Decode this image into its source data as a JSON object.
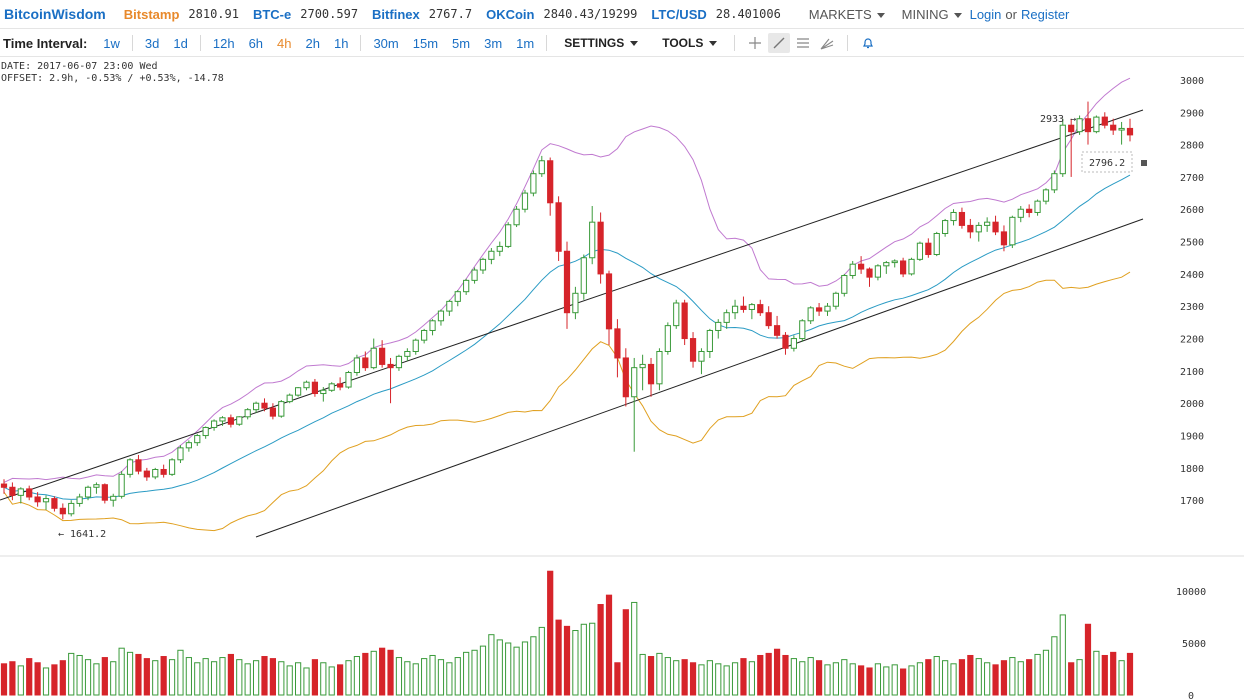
{
  "header": {
    "brand": "BitcoinWisdom",
    "exchanges": [
      {
        "name": "Bitstamp",
        "price": "2810.91",
        "color": "#e8892b"
      },
      {
        "name": "BTC-e",
        "price": "2700.597",
        "color": "#1a6fc4"
      },
      {
        "name": "Bitfinex",
        "price": "2767.7",
        "color": "#1a6fc4"
      },
      {
        "name": "OKCoin",
        "price": "2840.43/19299",
        "color": "#1a6fc4"
      },
      {
        "name": "LTC/USD",
        "price": "28.401006",
        "color": "#1a6fc4"
      }
    ],
    "markets_label": "MARKETS",
    "mining_label": "MINING",
    "login_label": "Login",
    "or_label": "or",
    "register_label": "Register"
  },
  "toolbar": {
    "time_interval_label": "Time Interval:",
    "intervals": [
      "1w",
      "3d",
      "1d",
      "12h",
      "6h",
      "4h",
      "2h",
      "1h",
      "30m",
      "15m",
      "5m",
      "3m",
      "1m"
    ],
    "active_interval": "4h",
    "settings_label": "SETTINGS",
    "tools_label": "TOOLS",
    "tool_icons": [
      "crosshair-icon",
      "trendline-icon",
      "fibonacci-icon",
      "fan-icon",
      "bell-icon"
    ]
  },
  "info": {
    "date_line": "DATE: 2017-06-07 23:00 Wed",
    "offset_line": "OFFSET: 2.9h, -0.53% / +0.53%, -14.78"
  },
  "annotations": {
    "high_label": "2933 →",
    "low_label": "← 1641.2",
    "current_price": "2796.2"
  },
  "colors": {
    "up": "#3a9a3a",
    "down": "#d6242a",
    "ma_fast": "#2a9bc4",
    "band_upper": "#c07ad0",
    "band_lower": "#e0a020",
    "channel": "#222222"
  },
  "chart_data": {
    "type": "candlestick",
    "price_axis_ticks": [
      1700,
      1800,
      1900,
      2000,
      2100,
      2200,
      2300,
      2400,
      2500,
      2600,
      2700,
      2800,
      2900,
      3000
    ],
    "volume_axis_ticks": [
      0,
      5000,
      10000
    ],
    "price_range": [
      1580,
      3040
    ],
    "volume_range": [
      0,
      12500
    ],
    "candles": [
      [
        1750,
        1765,
        1720,
        1740,
        3000
      ],
      [
        1740,
        1755,
        1700,
        1715,
        3200
      ],
      [
        1715,
        1740,
        1690,
        1735,
        2800
      ],
      [
        1735,
        1745,
        1700,
        1710,
        3500
      ],
      [
        1710,
        1725,
        1680,
        1695,
        3100
      ],
      [
        1695,
        1715,
        1670,
        1705,
        2600
      ],
      [
        1705,
        1712,
        1665,
        1675,
        2900
      ],
      [
        1675,
        1690,
        1641,
        1658,
        3300
      ],
      [
        1658,
        1700,
        1650,
        1690,
        4000
      ],
      [
        1690,
        1720,
        1680,
        1710,
        3800
      ],
      [
        1710,
        1745,
        1700,
        1740,
        3400
      ],
      [
        1740,
        1755,
        1720,
        1748,
        3000
      ],
      [
        1748,
        1752,
        1690,
        1700,
        3600
      ],
      [
        1700,
        1720,
        1680,
        1712,
        3200
      ],
      [
        1712,
        1790,
        1705,
        1780,
        4500
      ],
      [
        1780,
        1830,
        1770,
        1825,
        4100
      ],
      [
        1825,
        1840,
        1780,
        1790,
        3900
      ],
      [
        1790,
        1800,
        1760,
        1772,
        3500
      ],
      [
        1772,
        1800,
        1765,
        1795,
        3300
      ],
      [
        1795,
        1810,
        1770,
        1780,
        3700
      ],
      [
        1780,
        1830,
        1775,
        1825,
        3400
      ],
      [
        1825,
        1870,
        1815,
        1862,
        4300
      ],
      [
        1862,
        1885,
        1850,
        1878,
        3600
      ],
      [
        1878,
        1905,
        1868,
        1900,
        3100
      ],
      [
        1900,
        1928,
        1890,
        1925,
        3500
      ],
      [
        1925,
        1950,
        1915,
        1945,
        3200
      ],
      [
        1945,
        1960,
        1930,
        1955,
        3600
      ],
      [
        1955,
        1965,
        1925,
        1935,
        3900
      ],
      [
        1935,
        1960,
        1930,
        1958,
        3400
      ],
      [
        1958,
        1985,
        1950,
        1980,
        3000
      ],
      [
        1980,
        2005,
        1970,
        2000,
        3300
      ],
      [
        2000,
        2015,
        1975,
        1985,
        3700
      ],
      [
        1985,
        2000,
        1950,
        1960,
        3500
      ],
      [
        1960,
        2010,
        1955,
        2005,
        3200
      ],
      [
        2005,
        2030,
        2000,
        2025,
        2800
      ],
      [
        2025,
        2050,
        2020,
        2048,
        3100
      ],
      [
        2048,
        2070,
        2040,
        2065,
        2600
      ],
      [
        2065,
        2075,
        2020,
        2030,
        3400
      ],
      [
        2030,
        2050,
        2005,
        2040,
        3100
      ],
      [
        2040,
        2065,
        2035,
        2060,
        2700
      ],
      [
        2060,
        2080,
        2040,
        2050,
        2900
      ],
      [
        2050,
        2100,
        2045,
        2095,
        3300
      ],
      [
        2095,
        2150,
        2085,
        2140,
        3700
      ],
      [
        2140,
        2160,
        2100,
        2110,
        4000
      ],
      [
        2110,
        2200,
        2105,
        2170,
        4200
      ],
      [
        2170,
        2195,
        2110,
        2120,
        4500
      ],
      [
        2120,
        2140,
        2000,
        2110,
        4300
      ],
      [
        2110,
        2150,
        2100,
        2145,
        3600
      ],
      [
        2145,
        2170,
        2130,
        2160,
        3200
      ],
      [
        2160,
        2200,
        2150,
        2195,
        3000
      ],
      [
        2195,
        2230,
        2185,
        2225,
        3500
      ],
      [
        2225,
        2260,
        2210,
        2255,
        3800
      ],
      [
        2255,
        2290,
        2240,
        2285,
        3400
      ],
      [
        2285,
        2320,
        2270,
        2315,
        3100
      ],
      [
        2315,
        2350,
        2300,
        2345,
        3600
      ],
      [
        2345,
        2385,
        2335,
        2380,
        4100
      ],
      [
        2380,
        2420,
        2370,
        2412,
        4300
      ],
      [
        2412,
        2450,
        2400,
        2445,
        4700
      ],
      [
        2445,
        2480,
        2430,
        2470,
        5800
      ],
      [
        2470,
        2500,
        2455,
        2485,
        5300
      ],
      [
        2485,
        2560,
        2480,
        2552,
        5000
      ],
      [
        2552,
        2610,
        2545,
        2600,
        4600
      ],
      [
        2600,
        2660,
        2590,
        2650,
        5100
      ],
      [
        2650,
        2720,
        2640,
        2710,
        5600
      ],
      [
        2710,
        2765,
        2700,
        2750,
        6500
      ],
      [
        2750,
        2760,
        2580,
        2620,
        11900
      ],
      [
        2620,
        2640,
        2440,
        2470,
        7200
      ],
      [
        2470,
        2500,
        2230,
        2280,
        6600
      ],
      [
        2280,
        2360,
        2260,
        2340,
        6200
      ],
      [
        2340,
        2460,
        2320,
        2450,
        6800
      ],
      [
        2450,
        2610,
        2430,
        2560,
        6900
      ],
      [
        2560,
        2590,
        2370,
        2400,
        8700
      ],
      [
        2400,
        2410,
        2180,
        2230,
        9600
      ],
      [
        2230,
        2260,
        2080,
        2140,
        3100
      ],
      [
        2140,
        2170,
        1990,
        2020,
        8200
      ],
      [
        2020,
        2140,
        1850,
        2110,
        8900
      ],
      [
        2110,
        2150,
        2040,
        2120,
        3900
      ],
      [
        2120,
        2140,
        2020,
        2060,
        3700
      ],
      [
        2060,
        2170,
        2040,
        2160,
        4000
      ],
      [
        2160,
        2250,
        2150,
        2240,
        3600
      ],
      [
        2240,
        2320,
        2230,
        2310,
        3300
      ],
      [
        2310,
        2320,
        2180,
        2200,
        3400
      ],
      [
        2200,
        2220,
        2110,
        2130,
        3100
      ],
      [
        2130,
        2170,
        2090,
        2160,
        2900
      ],
      [
        2160,
        2230,
        2140,
        2225,
        3300
      ],
      [
        2225,
        2260,
        2200,
        2250,
        3000
      ],
      [
        2250,
        2290,
        2230,
        2280,
        2800
      ],
      [
        2280,
        2320,
        2260,
        2300,
        3100
      ],
      [
        2300,
        2330,
        2280,
        2290,
        3500
      ],
      [
        2290,
        2310,
        2260,
        2305,
        3200
      ],
      [
        2305,
        2320,
        2270,
        2280,
        3800
      ],
      [
        2280,
        2300,
        2230,
        2240,
        4000
      ],
      [
        2240,
        2270,
        2200,
        2210,
        4400
      ],
      [
        2210,
        2220,
        2150,
        2170,
        3800
      ],
      [
        2170,
        2210,
        2160,
        2200,
        3500
      ],
      [
        2200,
        2260,
        2190,
        2255,
        3200
      ],
      [
        2255,
        2300,
        2245,
        2295,
        3600
      ],
      [
        2295,
        2310,
        2270,
        2285,
        3300
      ],
      [
        2285,
        2310,
        2270,
        2300,
        2900
      ],
      [
        2300,
        2345,
        2290,
        2340,
        3100
      ],
      [
        2340,
        2400,
        2330,
        2395,
        3400
      ],
      [
        2395,
        2440,
        2385,
        2430,
        3000
      ],
      [
        2430,
        2455,
        2400,
        2415,
        2800
      ],
      [
        2415,
        2420,
        2360,
        2390,
        2600
      ],
      [
        2390,
        2430,
        2380,
        2425,
        3000
      ],
      [
        2425,
        2440,
        2400,
        2435,
        2700
      ],
      [
        2435,
        2445,
        2420,
        2440,
        2900
      ],
      [
        2440,
        2450,
        2390,
        2400,
        2500
      ],
      [
        2400,
        2450,
        2395,
        2445,
        2800
      ],
      [
        2445,
        2500,
        2440,
        2495,
        3100
      ],
      [
        2495,
        2510,
        2450,
        2460,
        3400
      ],
      [
        2460,
        2530,
        2455,
        2525,
        3700
      ],
      [
        2525,
        2570,
        2515,
        2565,
        3300
      ],
      [
        2565,
        2600,
        2550,
        2590,
        3000
      ],
      [
        2590,
        2605,
        2540,
        2550,
        3400
      ],
      [
        2550,
        2570,
        2510,
        2530,
        3800
      ],
      [
        2530,
        2560,
        2500,
        2550,
        3500
      ],
      [
        2550,
        2575,
        2530,
        2560,
        3100
      ],
      [
        2560,
        2580,
        2520,
        2530,
        2900
      ],
      [
        2530,
        2550,
        2470,
        2490,
        3300
      ],
      [
        2490,
        2580,
        2480,
        2575,
        3600
      ],
      [
        2575,
        2610,
        2560,
        2600,
        3200
      ],
      [
        2600,
        2615,
        2575,
        2590,
        3400
      ],
      [
        2590,
        2630,
        2580,
        2625,
        3900
      ],
      [
        2625,
        2665,
        2615,
        2660,
        4300
      ],
      [
        2660,
        2720,
        2650,
        2710,
        5600
      ],
      [
        2710,
        2880,
        2700,
        2860,
        7700
      ],
      [
        2860,
        2880,
        2700,
        2840,
        3100
      ],
      [
        2840,
        2890,
        2830,
        2880,
        3400
      ],
      [
        2880,
        2933,
        2800,
        2840,
        6800
      ],
      [
        2840,
        2890,
        2835,
        2885,
        4200
      ],
      [
        2885,
        2900,
        2850,
        2860,
        3800
      ],
      [
        2860,
        2880,
        2830,
        2845,
        4100
      ],
      [
        2845,
        2870,
        2800,
        2850,
        3300
      ],
      [
        2850,
        2880,
        2810,
        2830,
        4000
      ]
    ]
  }
}
